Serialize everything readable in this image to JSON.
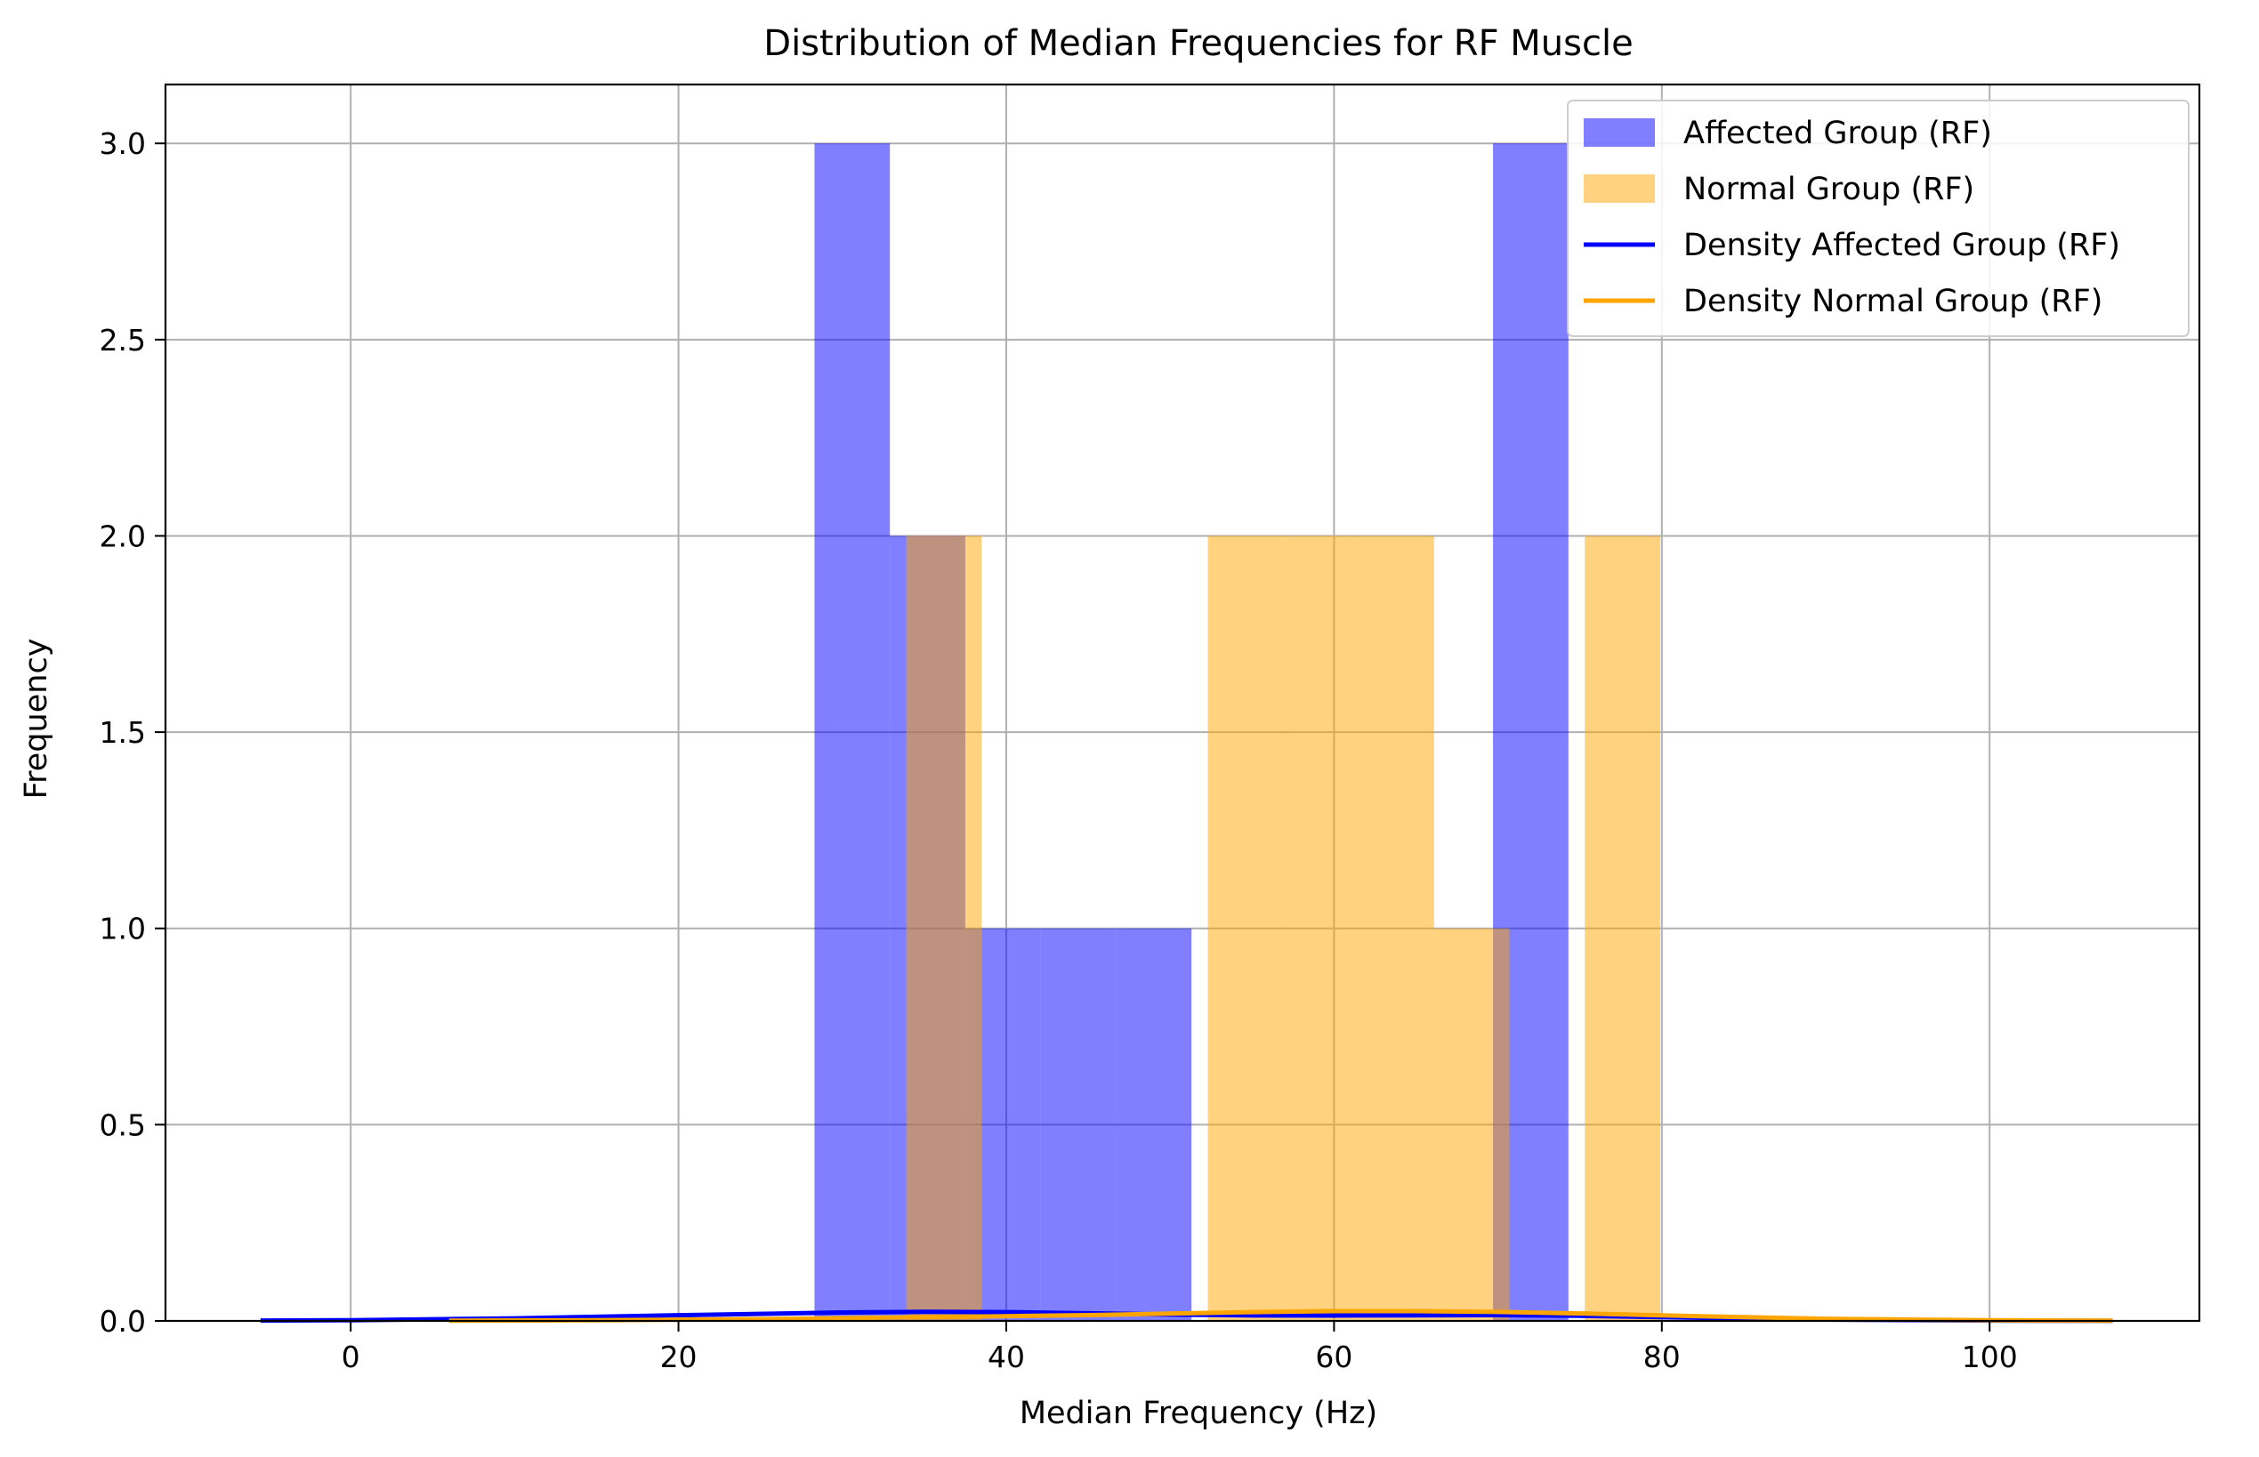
{
  "chart_data": {
    "type": "bar",
    "title": "Distribution of Median Frequencies for RF Muscle",
    "xlabel": "Median Frequency (Hz)",
    "ylabel": "Frequency",
    "xlim": [
      -11.3,
      112.8
    ],
    "ylim": [
      0,
      3.15
    ],
    "xticks": [
      0,
      20,
      40,
      60,
      80,
      100
    ],
    "xtick_labels": [
      "0",
      "20",
      "40",
      "60",
      "80",
      "100"
    ],
    "yticks": [
      0,
      0.5,
      1,
      1.5,
      2,
      2.5,
      3
    ],
    "ytick_labels": [
      "0.0",
      "0.5",
      "1.0",
      "1.5",
      "2.0",
      "2.5",
      "3.0"
    ],
    "grid": true,
    "legend_position": "top-right",
    "histograms": [
      {
        "name": "Affected Group (RF)",
        "color": "#0000ff",
        "opacity": 0.5,
        "bins": [
          {
            "x0": 28.3,
            "x1": 32.9,
            "count": 3
          },
          {
            "x0": 32.9,
            "x1": 37.5,
            "count": 2
          },
          {
            "x0": 37.5,
            "x1": 42.1,
            "count": 1
          },
          {
            "x0": 42.1,
            "x1": 46.7,
            "count": 1
          },
          {
            "x0": 46.7,
            "x1": 51.3,
            "count": 1
          },
          {
            "x0": 51.3,
            "x1": 55.9,
            "count": 0
          },
          {
            "x0": 55.9,
            "x1": 60.5,
            "count": 0
          },
          {
            "x0": 60.5,
            "x1": 65.1,
            "count": 0
          },
          {
            "x0": 65.1,
            "x1": 69.7,
            "count": 0
          },
          {
            "x0": 69.7,
            "x1": 74.3,
            "count": 3
          }
        ]
      },
      {
        "name": "Normal Group (RF)",
        "color": "#ffa500",
        "opacity": 0.5,
        "bins": [
          {
            "x0": 33.9,
            "x1": 38.5,
            "count": 2
          },
          {
            "x0": 38.5,
            "x1": 43.1,
            "count": 0
          },
          {
            "x0": 43.1,
            "x1": 47.7,
            "count": 0
          },
          {
            "x0": 47.7,
            "x1": 52.3,
            "count": 0
          },
          {
            "x0": 52.3,
            "x1": 56.9,
            "count": 2
          },
          {
            "x0": 56.9,
            "x1": 61.5,
            "count": 2
          },
          {
            "x0": 61.5,
            "x1": 66.1,
            "count": 2
          },
          {
            "x0": 66.1,
            "x1": 70.7,
            "count": 1
          },
          {
            "x0": 70.7,
            "x1": 75.3,
            "count": 0
          },
          {
            "x0": 75.3,
            "x1": 79.9,
            "count": 2
          }
        ]
      }
    ],
    "series": [
      {
        "name": "Density Affected Group (RF)",
        "color": "#0000ff",
        "x": [
          -5.5,
          0,
          10,
          20,
          30,
          35,
          40,
          45,
          50,
          55,
          60,
          65,
          70,
          75,
          80,
          90,
          100,
          107.5
        ],
        "y": [
          0.0008,
          0.0018,
          0.0065,
          0.0145,
          0.0215,
          0.0232,
          0.0225,
          0.0195,
          0.016,
          0.0138,
          0.0135,
          0.0142,
          0.0148,
          0.013,
          0.0095,
          0.0035,
          0.0009,
          0.0003
        ]
      },
      {
        "name": "Density Normal Group (RF)",
        "color": "#ffa500",
        "x": [
          6,
          15,
          25,
          35,
          40,
          45,
          50,
          55,
          60,
          65,
          70,
          75,
          80,
          85,
          90,
          100,
          107.5
        ],
        "y": [
          0.0004,
          0.0015,
          0.0045,
          0.0095,
          0.012,
          0.0148,
          0.0185,
          0.0225,
          0.025,
          0.025,
          0.0228,
          0.019,
          0.014,
          0.0095,
          0.0055,
          0.0015,
          0.0005
        ]
      }
    ]
  }
}
